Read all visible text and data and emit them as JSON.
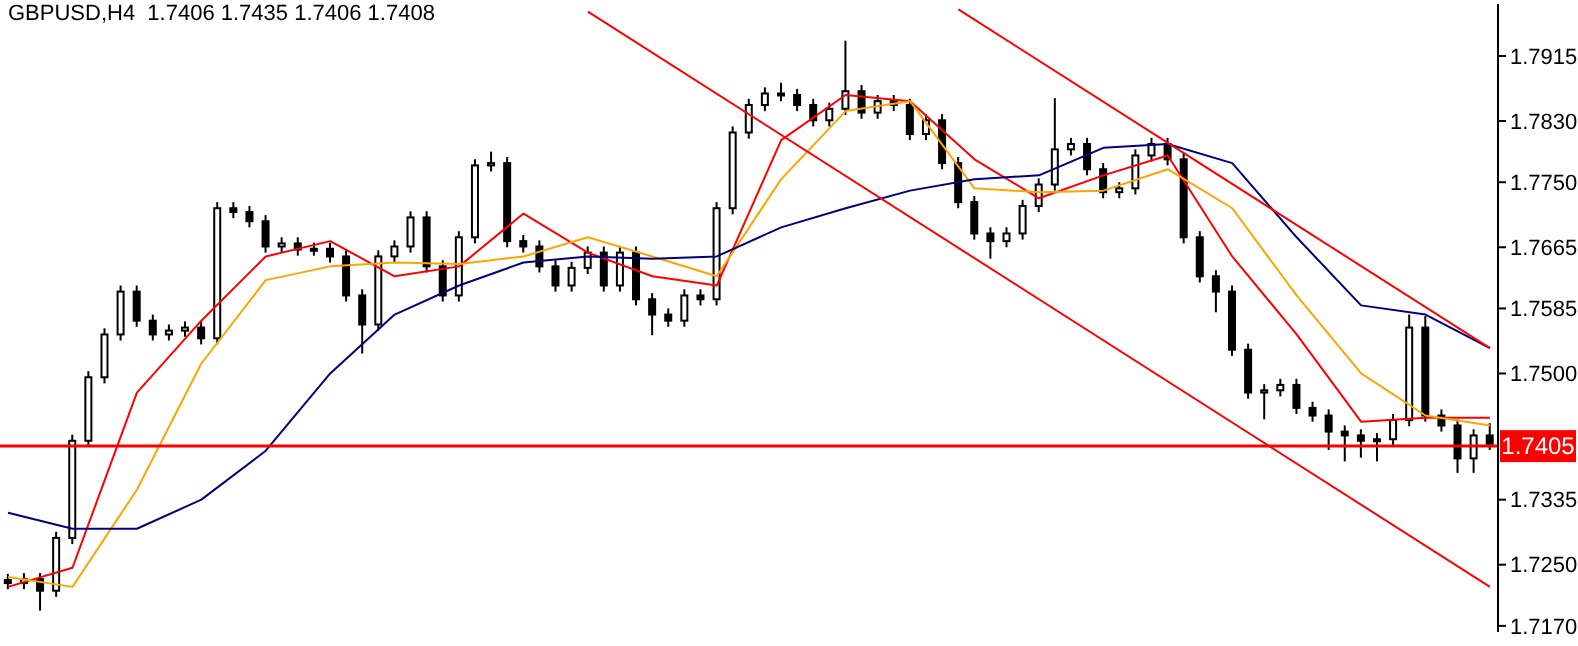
{
  "chart_data": {
    "type": "candlestick",
    "title": "GBPUSD,H4  1.7406 1.7435 1.7406 1.7408",
    "categories": [
      null,
      null,
      null,
      null,
      null,
      null,
      null,
      null,
      null,
      null,
      null,
      null,
      null,
      null,
      null,
      null,
      null,
      null,
      null,
      null,
      null,
      null,
      null,
      null,
      null,
      null,
      null,
      null,
      null,
      null,
      null,
      null,
      null,
      null,
      null,
      null,
      null,
      null,
      null,
      null,
      null,
      null,
      null,
      null,
      null,
      null,
      null,
      null,
      null,
      null,
      null,
      null,
      null,
      null,
      null,
      null,
      null,
      null,
      null,
      null,
      null,
      null,
      null,
      null,
      null,
      null,
      null,
      null,
      null,
      null,
      null,
      null,
      null,
      null,
      null,
      null,
      null,
      null,
      null,
      null,
      null,
      null,
      null,
      null,
      null,
      null,
      null,
      null,
      null,
      null,
      null,
      null,
      null
    ],
    "ohlc": [
      [
        1.723,
        1.7238,
        1.7218,
        1.7226
      ],
      [
        1.7226,
        1.7239,
        1.7218,
        1.7231
      ],
      [
        1.7231,
        1.7239,
        1.719,
        1.7216
      ],
      [
        1.7216,
        1.7293,
        1.7208,
        1.7285
      ],
      [
        1.7285,
        1.742,
        1.7277,
        1.7412
      ],
      [
        1.7412,
        1.7503,
        1.7404,
        1.7495
      ],
      [
        1.7495,
        1.7559,
        1.7487,
        1.7551
      ],
      [
        1.7551,
        1.7615,
        1.7543,
        1.7607
      ],
      [
        1.7607,
        1.7615,
        1.7561,
        1.7569
      ],
      [
        1.7569,
        1.7577,
        1.7543,
        1.7551
      ],
      [
        1.7551,
        1.7564,
        1.7543,
        1.7556
      ],
      [
        1.7556,
        1.7568,
        1.7548,
        1.756
      ],
      [
        1.756,
        1.7568,
        1.7538,
        1.7546
      ],
      [
        1.7546,
        1.7724,
        1.7538,
        1.7716
      ],
      [
        1.7716,
        1.7724,
        1.7703,
        1.7711
      ],
      [
        1.7711,
        1.7719,
        1.7691,
        1.7699
      ],
      [
        1.7699,
        1.7707,
        1.7658,
        1.7666
      ],
      [
        1.7666,
        1.7678,
        1.7658,
        1.767
      ],
      [
        1.767,
        1.7678,
        1.7654,
        1.7662
      ],
      [
        1.7662,
        1.7671,
        1.7654,
        1.7663
      ],
      [
        1.7663,
        1.7671,
        1.7645,
        1.7653
      ],
      [
        1.7653,
        1.7661,
        1.7594,
        1.7602
      ],
      [
        1.7602,
        1.761,
        1.7526,
        1.7564
      ],
      [
        1.7564,
        1.7661,
        1.7556,
        1.7653
      ],
      [
        1.7653,
        1.7674,
        1.7645,
        1.7666
      ],
      [
        1.7666,
        1.7712,
        1.7658,
        1.7704
      ],
      [
        1.7704,
        1.7712,
        1.7632,
        1.764
      ],
      [
        1.764,
        1.7648,
        1.7594,
        1.7602
      ],
      [
        1.7602,
        1.7686,
        1.7594,
        1.7678
      ],
      [
        1.7678,
        1.778,
        1.767,
        1.7772
      ],
      [
        1.7772,
        1.779,
        1.7764,
        1.7775
      ],
      [
        1.7775,
        1.7783,
        1.7665,
        1.7673
      ],
      [
        1.7673,
        1.7681,
        1.7658,
        1.7666
      ],
      [
        1.7666,
        1.7674,
        1.7632,
        1.764
      ],
      [
        1.764,
        1.7648,
        1.7607,
        1.7615
      ],
      [
        1.7615,
        1.7646,
        1.7607,
        1.7638
      ],
      [
        1.7638,
        1.7666,
        1.763,
        1.7658
      ],
      [
        1.7658,
        1.7666,
        1.7607,
        1.7615
      ],
      [
        1.7615,
        1.7666,
        1.7607,
        1.7658
      ],
      [
        1.7658,
        1.7666,
        1.7589,
        1.7597
      ],
      [
        1.7597,
        1.7605,
        1.755,
        1.7577
      ],
      [
        1.7577,
        1.7585,
        1.7561,
        1.7569
      ],
      [
        1.7569,
        1.761,
        1.7561,
        1.7602
      ],
      [
        1.7602,
        1.761,
        1.7589,
        1.7597
      ],
      [
        1.7597,
        1.7724,
        1.7589,
        1.7716
      ],
      [
        1.7716,
        1.7823,
        1.7708,
        1.7815
      ],
      [
        1.7815,
        1.7859,
        1.7807,
        1.7851
      ],
      [
        1.7851,
        1.7874,
        1.7843,
        1.7866
      ],
      [
        1.7866,
        1.788,
        1.7856,
        1.7864
      ],
      [
        1.7864,
        1.7872,
        1.7843,
        1.7851
      ],
      [
        1.7851,
        1.7859,
        1.7823,
        1.7831
      ],
      [
        1.7831,
        1.7854,
        1.7823,
        1.7846
      ],
      [
        1.7846,
        1.7935,
        1.7838,
        1.7869
      ],
      [
        1.7869,
        1.7877,
        1.7833,
        1.7841
      ],
      [
        1.7841,
        1.7864,
        1.7833,
        1.7856
      ],
      [
        1.7856,
        1.7864,
        1.7843,
        1.7851
      ],
      [
        1.7851,
        1.7859,
        1.7805,
        1.7813
      ],
      [
        1.7813,
        1.7839,
        1.7805,
        1.7831
      ],
      [
        1.7831,
        1.7839,
        1.7767,
        1.7775
      ],
      [
        1.7775,
        1.7783,
        1.7716,
        1.7724
      ],
      [
        1.7724,
        1.7732,
        1.7675,
        1.7683
      ],
      [
        1.7683,
        1.7691,
        1.765,
        1.7673
      ],
      [
        1.7673,
        1.7691,
        1.7665,
        1.7683
      ],
      [
        1.7683,
        1.7727,
        1.7675,
        1.7719
      ],
      [
        1.7719,
        1.7755,
        1.7711,
        1.7747
      ],
      [
        1.7747,
        1.786,
        1.7739,
        1.7793
      ],
      [
        1.7793,
        1.7808,
        1.7785,
        1.78
      ],
      [
        1.78,
        1.7808,
        1.7759,
        1.7767
      ],
      [
        1.7767,
        1.7775,
        1.7729,
        1.7737
      ],
      [
        1.7737,
        1.775,
        1.7729,
        1.7742
      ],
      [
        1.7742,
        1.7793,
        1.7734,
        1.7785
      ],
      [
        1.7785,
        1.7808,
        1.7777,
        1.78
      ],
      [
        1.78,
        1.7808,
        1.7772,
        1.778
      ],
      [
        1.778,
        1.7788,
        1.767,
        1.7678
      ],
      [
        1.7678,
        1.7686,
        1.7619,
        1.7627
      ],
      [
        1.7627,
        1.7635,
        1.758,
        1.7607
      ],
      [
        1.7607,
        1.7615,
        1.7523,
        1.7531
      ],
      [
        1.7531,
        1.7539,
        1.7467,
        1.7475
      ],
      [
        1.7475,
        1.7486,
        1.744,
        1.7478
      ],
      [
        1.7478,
        1.7493,
        1.747,
        1.7485
      ],
      [
        1.7485,
        1.7493,
        1.7447,
        1.7455
      ],
      [
        1.7455,
        1.7463,
        1.7437,
        1.7445
      ],
      [
        1.7445,
        1.7453,
        1.74,
        1.7424
      ],
      [
        1.7424,
        1.7432,
        1.7385,
        1.7419
      ],
      [
        1.7419,
        1.7427,
        1.739,
        1.7412
      ],
      [
        1.7412,
        1.7422,
        1.7385,
        1.7414
      ],
      [
        1.7414,
        1.7447,
        1.7406,
        1.7439
      ],
      [
        1.7439,
        1.7577,
        1.7431,
        1.756
      ],
      [
        1.756,
        1.7575,
        1.7437,
        1.7445
      ],
      [
        1.7445,
        1.7453,
        1.7424,
        1.7432
      ],
      [
        1.7432,
        1.744,
        1.737,
        1.7389
      ],
      [
        1.7389,
        1.7427,
        1.737,
        1.7419
      ],
      [
        1.7419,
        1.7435,
        1.74,
        1.7408
      ]
    ],
    "series": [
      {
        "type": "line",
        "color": "#ff0000",
        "values": [
          1.7221,
          null,
          null,
          null,
          1.7246,
          null,
          null,
          null,
          1.7475,
          null,
          null,
          null,
          1.7569,
          null,
          null,
          null,
          1.7653,
          null,
          null,
          null,
          1.7673,
          null,
          null,
          null,
          1.7627,
          null,
          null,
          null,
          1.764,
          null,
          null,
          null,
          1.7709,
          null,
          null,
          null,
          1.7658,
          null,
          null,
          null,
          1.7627,
          null,
          null,
          null,
          1.7615,
          null,
          null,
          null,
          1.7805,
          null,
          null,
          null,
          1.7864,
          null,
          null,
          null,
          1.7856,
          null,
          null,
          null,
          1.778,
          null,
          null,
          null,
          1.7729,
          null,
          null,
          null,
          1.7759,
          null,
          null,
          null,
          1.7785,
          null,
          null,
          null,
          1.7653,
          null,
          null,
          null,
          1.7551,
          null,
          null,
          null,
          1.7437,
          null,
          null,
          null,
          1.7442,
          null,
          null,
          null,
          1.7442
        ]
      },
      {
        "type": "line",
        "color": "#ffa500",
        "values": [
          1.7234,
          null,
          null,
          null,
          1.7221,
          null,
          null,
          null,
          1.7348,
          null,
          null,
          null,
          1.7513,
          null,
          null,
          null,
          1.7622,
          null,
          null,
          null,
          1.764,
          null,
          null,
          null,
          1.7645,
          null,
          null,
          null,
          1.7643,
          null,
          null,
          null,
          1.7653,
          null,
          null,
          null,
          1.7678,
          null,
          null,
          null,
          1.7653,
          null,
          null,
          null,
          1.7627,
          null,
          null,
          null,
          1.7754,
          null,
          null,
          null,
          1.7843,
          null,
          null,
          null,
          1.7856,
          null,
          null,
          null,
          1.7742,
          null,
          null,
          null,
          1.7737,
          null,
          null,
          null,
          1.7739,
          null,
          null,
          null,
          1.7767,
          null,
          null,
          null,
          1.7716,
          null,
          null,
          null,
          1.7602,
          null,
          null,
          null,
          1.75,
          null,
          null,
          null,
          1.7445,
          null,
          null,
          null,
          1.7432
        ]
      },
      {
        "type": "line",
        "color": "#000080",
        "values": [
          1.7318,
          null,
          null,
          null,
          1.7297,
          null,
          null,
          null,
          1.7297,
          null,
          null,
          null,
          1.7335,
          null,
          null,
          null,
          1.7399,
          null,
          null,
          null,
          1.75,
          null,
          null,
          null,
          1.7577,
          null,
          null,
          null,
          1.7615,
          null,
          null,
          null,
          1.7645,
          null,
          null,
          null,
          1.7653,
          null,
          null,
          null,
          1.765,
          null,
          null,
          null,
          1.7653,
          null,
          null,
          null,
          1.7691,
          null,
          null,
          null,
          1.7716,
          null,
          null,
          null,
          1.7739,
          null,
          null,
          null,
          1.7754,
          null,
          null,
          null,
          1.7759,
          null,
          null,
          null,
          1.7795,
          null,
          null,
          null,
          1.78,
          null,
          null,
          null,
          1.7775,
          null,
          null,
          null,
          1.7678,
          null,
          null,
          null,
          1.7589,
          null,
          null,
          null,
          1.7577,
          null,
          null,
          null,
          1.7533
        ]
      },
      {
        "type": "line",
        "color": "#ff0000",
        "values": [
          null,
          null,
          null,
          null,
          null,
          null,
          null,
          null,
          null,
          null,
          null,
          null,
          null,
          null,
          null,
          null,
          null,
          null,
          null,
          null,
          null,
          null,
          null,
          null,
          null,
          null,
          null,
          null,
          null,
          null,
          null,
          null,
          null,
          null,
          null,
          null,
          1.7973,
          null,
          null,
          null,
          null,
          null,
          null,
          null,
          null,
          null,
          null,
          null,
          null,
          null,
          null,
          null,
          null,
          null,
          null,
          null,
          null,
          null,
          null,
          null,
          null,
          null,
          null,
          null,
          null,
          null,
          null,
          null,
          null,
          null,
          null,
          null,
          null,
          null,
          null,
          null,
          null,
          null,
          null,
          null,
          null,
          null,
          null,
          null,
          null,
          null,
          null,
          null,
          null,
          null,
          null,
          null,
          1.7221
        ]
      },
      {
        "type": "line",
        "color": "#ff0000",
        "values": [
          null,
          null,
          null,
          null,
          null,
          null,
          null,
          null,
          null,
          null,
          null,
          null,
          null,
          null,
          null,
          null,
          null,
          null,
          null,
          null,
          null,
          null,
          null,
          null,
          null,
          null,
          null,
          null,
          null,
          null,
          null,
          null,
          null,
          null,
          null,
          null,
          null,
          null,
          null,
          null,
          null,
          null,
          null,
          null,
          null,
          null,
          null,
          null,
          null,
          null,
          null,
          null,
          null,
          null,
          null,
          null,
          null,
          null,
          null,
          1.7976,
          null,
          null,
          null,
          null,
          null,
          null,
          null,
          null,
          null,
          null,
          null,
          null,
          null,
          null,
          null,
          null,
          null,
          null,
          null,
          null,
          null,
          null,
          null,
          null,
          null,
          null,
          null,
          null,
          null,
          null,
          null,
          null,
          1.7533
        ]
      }
    ],
    "ylim": [
      1.7162,
      1.7983
    ],
    "yticks": [
      1.7915,
      {
        "value": 1.783,
        "label": "1.7830"
      },
      {
        "value": 1.775,
        "label": "1.7750"
      },
      1.7665,
      1.7585,
      {
        "value": 1.75,
        "label": "1.7500"
      },
      1.7335,
      {
        "value": 1.725,
        "label": "1.7250"
      },
      {
        "value": 1.717,
        "label": "1.7170"
      }
    ],
    "ref_lines": [
      {
        "axis": "y",
        "value": 1.7405,
        "label": "1.7405",
        "color": "#ff0000"
      }
    ],
    "tick_labels": "y"
  }
}
